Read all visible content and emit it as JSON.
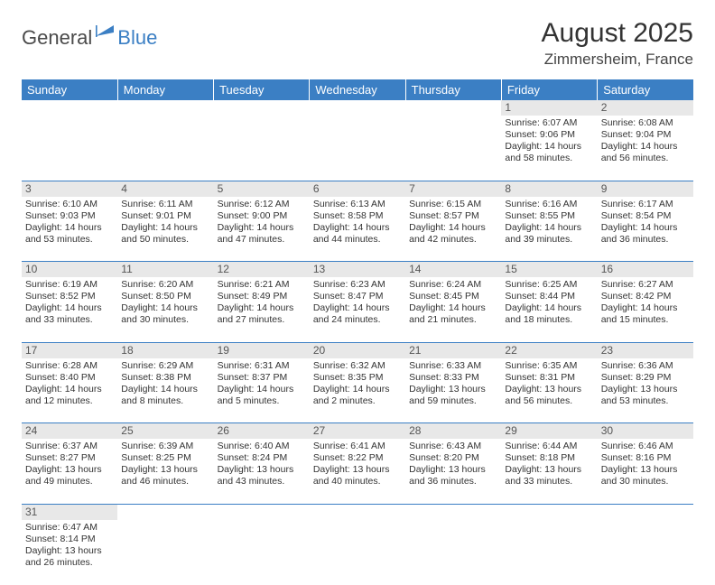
{
  "logo": {
    "general": "General",
    "blue": "Blue"
  },
  "title": "August 2025",
  "location": "Zimmersheim, France",
  "colors": {
    "header_bg": "#3b7fc4",
    "header_text": "#ffffff",
    "daynum_bg": "#e8e8e8",
    "border": "#3b7fc4",
    "logo_blue": "#3b7fc4",
    "logo_gray": "#4a4a4a"
  },
  "weekdays": [
    "Sunday",
    "Monday",
    "Tuesday",
    "Wednesday",
    "Thursday",
    "Friday",
    "Saturday"
  ],
  "weeks": [
    [
      null,
      null,
      null,
      null,
      null,
      {
        "n": "1",
        "sr": "Sunrise: 6:07 AM",
        "ss": "Sunset: 9:06 PM",
        "d1": "Daylight: 14 hours",
        "d2": "and 58 minutes."
      },
      {
        "n": "2",
        "sr": "Sunrise: 6:08 AM",
        "ss": "Sunset: 9:04 PM",
        "d1": "Daylight: 14 hours",
        "d2": "and 56 minutes."
      }
    ],
    [
      {
        "n": "3",
        "sr": "Sunrise: 6:10 AM",
        "ss": "Sunset: 9:03 PM",
        "d1": "Daylight: 14 hours",
        "d2": "and 53 minutes."
      },
      {
        "n": "4",
        "sr": "Sunrise: 6:11 AM",
        "ss": "Sunset: 9:01 PM",
        "d1": "Daylight: 14 hours",
        "d2": "and 50 minutes."
      },
      {
        "n": "5",
        "sr": "Sunrise: 6:12 AM",
        "ss": "Sunset: 9:00 PM",
        "d1": "Daylight: 14 hours",
        "d2": "and 47 minutes."
      },
      {
        "n": "6",
        "sr": "Sunrise: 6:13 AM",
        "ss": "Sunset: 8:58 PM",
        "d1": "Daylight: 14 hours",
        "d2": "and 44 minutes."
      },
      {
        "n": "7",
        "sr": "Sunrise: 6:15 AM",
        "ss": "Sunset: 8:57 PM",
        "d1": "Daylight: 14 hours",
        "d2": "and 42 minutes."
      },
      {
        "n": "8",
        "sr": "Sunrise: 6:16 AM",
        "ss": "Sunset: 8:55 PM",
        "d1": "Daylight: 14 hours",
        "d2": "and 39 minutes."
      },
      {
        "n": "9",
        "sr": "Sunrise: 6:17 AM",
        "ss": "Sunset: 8:54 PM",
        "d1": "Daylight: 14 hours",
        "d2": "and 36 minutes."
      }
    ],
    [
      {
        "n": "10",
        "sr": "Sunrise: 6:19 AM",
        "ss": "Sunset: 8:52 PM",
        "d1": "Daylight: 14 hours",
        "d2": "and 33 minutes."
      },
      {
        "n": "11",
        "sr": "Sunrise: 6:20 AM",
        "ss": "Sunset: 8:50 PM",
        "d1": "Daylight: 14 hours",
        "d2": "and 30 minutes."
      },
      {
        "n": "12",
        "sr": "Sunrise: 6:21 AM",
        "ss": "Sunset: 8:49 PM",
        "d1": "Daylight: 14 hours",
        "d2": "and 27 minutes."
      },
      {
        "n": "13",
        "sr": "Sunrise: 6:23 AM",
        "ss": "Sunset: 8:47 PM",
        "d1": "Daylight: 14 hours",
        "d2": "and 24 minutes."
      },
      {
        "n": "14",
        "sr": "Sunrise: 6:24 AM",
        "ss": "Sunset: 8:45 PM",
        "d1": "Daylight: 14 hours",
        "d2": "and 21 minutes."
      },
      {
        "n": "15",
        "sr": "Sunrise: 6:25 AM",
        "ss": "Sunset: 8:44 PM",
        "d1": "Daylight: 14 hours",
        "d2": "and 18 minutes."
      },
      {
        "n": "16",
        "sr": "Sunrise: 6:27 AM",
        "ss": "Sunset: 8:42 PM",
        "d1": "Daylight: 14 hours",
        "d2": "and 15 minutes."
      }
    ],
    [
      {
        "n": "17",
        "sr": "Sunrise: 6:28 AM",
        "ss": "Sunset: 8:40 PM",
        "d1": "Daylight: 14 hours",
        "d2": "and 12 minutes."
      },
      {
        "n": "18",
        "sr": "Sunrise: 6:29 AM",
        "ss": "Sunset: 8:38 PM",
        "d1": "Daylight: 14 hours",
        "d2": "and 8 minutes."
      },
      {
        "n": "19",
        "sr": "Sunrise: 6:31 AM",
        "ss": "Sunset: 8:37 PM",
        "d1": "Daylight: 14 hours",
        "d2": "and 5 minutes."
      },
      {
        "n": "20",
        "sr": "Sunrise: 6:32 AM",
        "ss": "Sunset: 8:35 PM",
        "d1": "Daylight: 14 hours",
        "d2": "and 2 minutes."
      },
      {
        "n": "21",
        "sr": "Sunrise: 6:33 AM",
        "ss": "Sunset: 8:33 PM",
        "d1": "Daylight: 13 hours",
        "d2": "and 59 minutes."
      },
      {
        "n": "22",
        "sr": "Sunrise: 6:35 AM",
        "ss": "Sunset: 8:31 PM",
        "d1": "Daylight: 13 hours",
        "d2": "and 56 minutes."
      },
      {
        "n": "23",
        "sr": "Sunrise: 6:36 AM",
        "ss": "Sunset: 8:29 PM",
        "d1": "Daylight: 13 hours",
        "d2": "and 53 minutes."
      }
    ],
    [
      {
        "n": "24",
        "sr": "Sunrise: 6:37 AM",
        "ss": "Sunset: 8:27 PM",
        "d1": "Daylight: 13 hours",
        "d2": "and 49 minutes."
      },
      {
        "n": "25",
        "sr": "Sunrise: 6:39 AM",
        "ss": "Sunset: 8:25 PM",
        "d1": "Daylight: 13 hours",
        "d2": "and 46 minutes."
      },
      {
        "n": "26",
        "sr": "Sunrise: 6:40 AM",
        "ss": "Sunset: 8:24 PM",
        "d1": "Daylight: 13 hours",
        "d2": "and 43 minutes."
      },
      {
        "n": "27",
        "sr": "Sunrise: 6:41 AM",
        "ss": "Sunset: 8:22 PM",
        "d1": "Daylight: 13 hours",
        "d2": "and 40 minutes."
      },
      {
        "n": "28",
        "sr": "Sunrise: 6:43 AM",
        "ss": "Sunset: 8:20 PM",
        "d1": "Daylight: 13 hours",
        "d2": "and 36 minutes."
      },
      {
        "n": "29",
        "sr": "Sunrise: 6:44 AM",
        "ss": "Sunset: 8:18 PM",
        "d1": "Daylight: 13 hours",
        "d2": "and 33 minutes."
      },
      {
        "n": "30",
        "sr": "Sunrise: 6:46 AM",
        "ss": "Sunset: 8:16 PM",
        "d1": "Daylight: 13 hours",
        "d2": "and 30 minutes."
      }
    ],
    [
      {
        "n": "31",
        "sr": "Sunrise: 6:47 AM",
        "ss": "Sunset: 8:14 PM",
        "d1": "Daylight: 13 hours",
        "d2": "and 26 minutes."
      },
      null,
      null,
      null,
      null,
      null,
      null
    ]
  ]
}
